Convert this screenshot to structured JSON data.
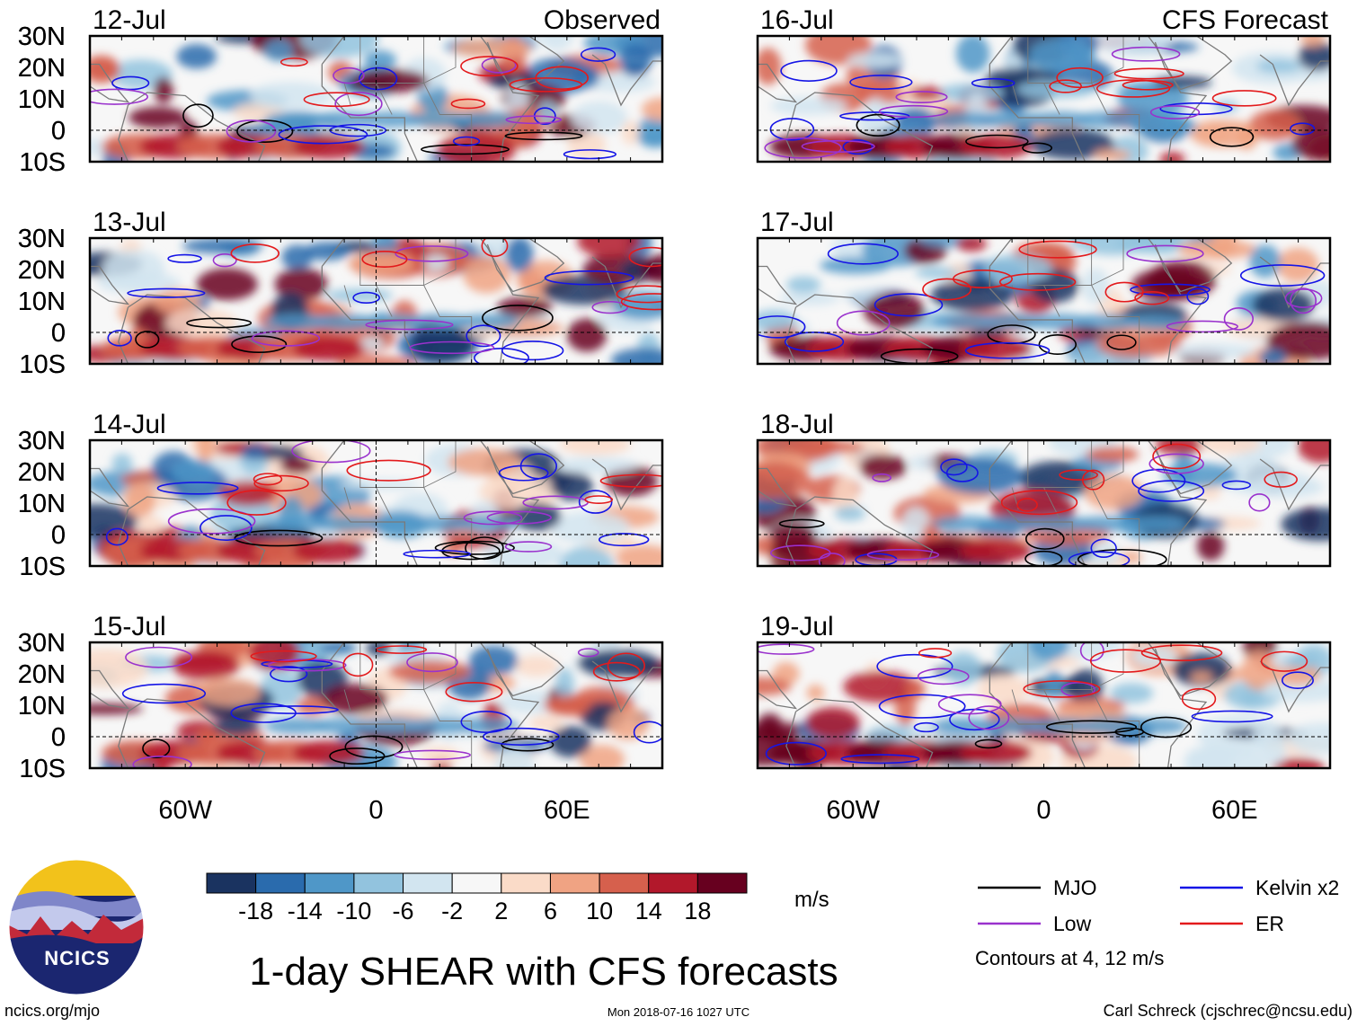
{
  "chart_data": {
    "type": "heatmap",
    "title": "1-day SHEAR with CFS forecasts",
    "units": "m/s",
    "columns": [
      {
        "label": "Observed",
        "dates": [
          "12-Jul",
          "13-Jul",
          "14-Jul",
          "15-Jul"
        ]
      },
      {
        "label": "CFS Forecast",
        "dates": [
          "16-Jul",
          "17-Jul",
          "18-Jul",
          "19-Jul"
        ]
      }
    ],
    "lat_ticks": [
      "30N",
      "20N",
      "10N",
      "0",
      "10S"
    ],
    "lat_values": [
      30,
      20,
      10,
      0,
      -10
    ],
    "lon_ticks": [
      "60W",
      "0",
      "60E"
    ],
    "lon_values": [
      -60,
      0,
      60
    ],
    "lon_range": [
      -90,
      90
    ],
    "lat_range": [
      -10,
      30
    ],
    "colorbar": {
      "labels": [
        "-18",
        "-14",
        "-10",
        "-6",
        "-2",
        "2",
        "6",
        "10",
        "14",
        "18"
      ],
      "colors": [
        "#1a3360",
        "#2a6bad",
        "#4f97c8",
        "#92c3de",
        "#d2e5f0",
        "#f7f7f7",
        "#fadbc8",
        "#f0a383",
        "#d6604d",
        "#b2182b",
        "#67001f"
      ]
    },
    "legend": [
      {
        "name": "MJO",
        "color": "#000000"
      },
      {
        "name": "Kelvin x2",
        "color": "#1515e6"
      },
      {
        "name": "Low",
        "color": "#9a32cd"
      },
      {
        "name": "ER",
        "color": "#e31a1c"
      }
    ],
    "contour_note": "Contours at 4, 12 m/s"
  },
  "logo": {
    "text": "NCICS"
  },
  "footer": {
    "url": "ncics.org/mjo",
    "timestamp": "Mon 2018-07-16 1027 UTC",
    "credit": "Carl Schreck (cjschrec@ncsu.edu)"
  }
}
